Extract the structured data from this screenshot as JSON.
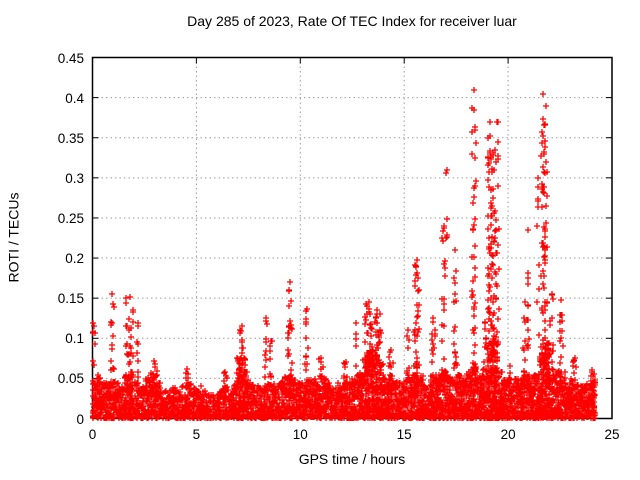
{
  "window": {
    "background": "#ffffff"
  },
  "chart_data": {
    "type": "scatter",
    "title": "Day 285 of 2023, Rate Of TEC Index for receiver luar",
    "xlabel": "GPS time / hours",
    "ylabel": "ROTI / TECUs",
    "xlim": [
      0,
      25
    ],
    "ylim": [
      0,
      0.45
    ],
    "xticks": [
      0,
      5,
      10,
      15,
      20,
      25
    ],
    "xtick_labels": [
      "0",
      "5",
      "10",
      "15",
      "20",
      "25"
    ],
    "yticks": [
      0,
      0.05,
      0.1,
      0.15,
      0.2,
      0.25,
      0.3,
      0.35,
      0.4,
      0.45
    ],
    "ytick_labels": [
      "0",
      "0.05",
      "0.1",
      "0.15",
      "0.2",
      "0.25",
      "0.3",
      "0.35",
      "0.4",
      "0.45"
    ],
    "grid": true,
    "legend": "none",
    "marker": "plus",
    "marker_color": "#ff0000",
    "grid_color": "#9c9c9c",
    "axis_color": "#000000",
    "series_name": "ROTI",
    "time_range_hours": [
      0,
      24.2
    ],
    "bin_hours": 0.25,
    "base_envelope": [
      0.05,
      0.055,
      0.045,
      0.05,
      0.045,
      0.04,
      0.055,
      0.06,
      0.045,
      0.04,
      0.05,
      0.055,
      0.045,
      0.035,
      0.035,
      0.04,
      0.035,
      0.04,
      0.045,
      0.04,
      0.04,
      0.035,
      0.03,
      0.03,
      0.035,
      0.04,
      0.035,
      0.045,
      0.07,
      0.06,
      0.045,
      0.04,
      0.04,
      0.045,
      0.045,
      0.04,
      0.045,
      0.055,
      0.05,
      0.045,
      0.045,
      0.05,
      0.05,
      0.045,
      0.05,
      0.045,
      0.04,
      0.045,
      0.05,
      0.045,
      0.05,
      0.06,
      0.075,
      0.085,
      0.08,
      0.07,
      0.055,
      0.055,
      0.045,
      0.045,
      0.05,
      0.055,
      0.065,
      0.055,
      0.04,
      0.055,
      0.055,
      0.06,
      0.055,
      0.05,
      0.055,
      0.05,
      0.06,
      0.07,
      0.055,
      0.065,
      0.095,
      0.1,
      0.06,
      0.05,
      0.045,
      0.05,
      0.05,
      0.055,
      0.05,
      0.055,
      0.09,
      0.095,
      0.055,
      0.06,
      0.06,
      0.045,
      0.05,
      0.045,
      0.04,
      0.045,
      0.05
    ],
    "spike_columns": [
      [
        0.05,
        0.06,
        0.115,
        6,
        0.06
      ],
      [
        0.95,
        0.06,
        0.155,
        14,
        0.1
      ],
      [
        1.8,
        0.06,
        0.152,
        24,
        0.18
      ],
      [
        2.2,
        0.05,
        0.115,
        6,
        0.05
      ],
      [
        2.95,
        0.05,
        0.072,
        8,
        0.15
      ],
      [
        4.55,
        0.05,
        0.062,
        4,
        0.06
      ],
      [
        6.4,
        0.04,
        0.058,
        5,
        0.1
      ],
      [
        6.95,
        0.04,
        0.075,
        6,
        0.06
      ],
      [
        7.2,
        0.05,
        0.115,
        26,
        0.15
      ],
      [
        8.35,
        0.05,
        0.125,
        8,
        0.05
      ],
      [
        8.6,
        0.05,
        0.096,
        6,
        0.05
      ],
      [
        9.5,
        0.05,
        0.17,
        22,
        0.1
      ],
      [
        10.3,
        0.05,
        0.136,
        12,
        0.06
      ],
      [
        11.0,
        0.05,
        0.075,
        7,
        0.12
      ],
      [
        12.2,
        0.05,
        0.07,
        6,
        0.1
      ],
      [
        12.7,
        0.05,
        0.119,
        5,
        0.04
      ],
      [
        13.3,
        0.07,
        0.145,
        30,
        0.2
      ],
      [
        13.7,
        0.07,
        0.135,
        24,
        0.18
      ],
      [
        14.35,
        0.05,
        0.085,
        8,
        0.1
      ],
      [
        15.2,
        0.05,
        0.11,
        8,
        0.08
      ],
      [
        15.6,
        0.06,
        0.198,
        30,
        0.12
      ],
      [
        16.4,
        0.05,
        0.125,
        14,
        0.08
      ],
      [
        16.9,
        0.06,
        0.24,
        16,
        0.08
      ],
      [
        17.05,
        0.2,
        0.31,
        3,
        0.03
      ],
      [
        17.45,
        0.06,
        0.21,
        16,
        0.08
      ],
      [
        18.35,
        0.08,
        0.41,
        36,
        0.09
      ],
      [
        18.9,
        0.06,
        0.12,
        8,
        0.08
      ],
      [
        19.15,
        0.08,
        0.37,
        60,
        0.13
      ],
      [
        19.35,
        0.08,
        0.335,
        30,
        0.1
      ],
      [
        19.5,
        0.1,
        0.37,
        10,
        0.05
      ],
      [
        20.1,
        0.04,
        0.065,
        5,
        0.06
      ],
      [
        20.8,
        0.05,
        0.145,
        10,
        0.06
      ],
      [
        20.95,
        0.06,
        0.235,
        12,
        0.05
      ],
      [
        21.45,
        0.08,
        0.3,
        10,
        0.05
      ],
      [
        21.7,
        0.08,
        0.405,
        42,
        0.1
      ],
      [
        21.82,
        0.08,
        0.39,
        20,
        0.07
      ],
      [
        22.1,
        0.06,
        0.155,
        12,
        0.1
      ],
      [
        22.55,
        0.06,
        0.148,
        12,
        0.08
      ],
      [
        23.2,
        0.05,
        0.075,
        6,
        0.1
      ],
      [
        24.05,
        0.04,
        0.06,
        6,
        0.08
      ]
    ],
    "outlier_points": [
      [
        0.02,
        0.119
      ],
      [
        17.0,
        0.306
      ],
      [
        17.02,
        0.225
      ],
      [
        2.2,
        0.119
      ],
      [
        12.7,
        0.119
      ],
      [
        19.47,
        0.37
      ],
      [
        19.52,
        0.345
      ],
      [
        8.35,
        0.122
      ],
      [
        8.62,
        0.096
      ]
    ],
    "seed": 285
  }
}
